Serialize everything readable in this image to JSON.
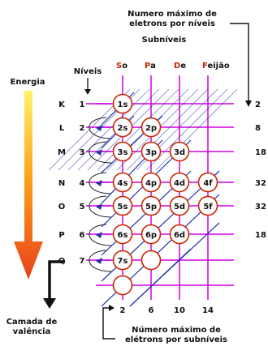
{
  "header": {
    "max_per_level": "Numero máximo de\neletrons por níveis",
    "max_per_level_l1": "Numero máximo de",
    "max_per_level_l2": "eletrons por níveis",
    "subniveis": "Subníveis",
    "levels_title": "Níveis"
  },
  "energy_label": "Energia",
  "mnemonic": {
    "letters": [
      "S",
      "P",
      "D",
      "F"
    ],
    "rests": [
      "o",
      "a",
      "e",
      "eijão"
    ]
  },
  "levels": [
    {
      "letter": "K",
      "number": "1",
      "max": "2"
    },
    {
      "letter": "L",
      "number": "2",
      "max": "8"
    },
    {
      "letter": "M",
      "number": "3",
      "max": "18"
    },
    {
      "letter": "N",
      "number": "4",
      "max": "32"
    },
    {
      "letter": "O",
      "number": "5",
      "max": "32"
    },
    {
      "letter": "P",
      "number": "6",
      "max": "18"
    },
    {
      "letter": "Q",
      "number": "7",
      "max": ""
    }
  ],
  "orbitals": [
    [
      "1s"
    ],
    [
      "2s",
      "2p"
    ],
    [
      "3s",
      "3p",
      "3d"
    ],
    [
      "4s",
      "4p",
      "4d",
      "4f"
    ],
    [
      "5s",
      "5p",
      "5d",
      "5f"
    ],
    [
      "6s",
      "6p",
      "6d"
    ],
    [
      "7s",
      ""
    ],
    [
      ""
    ]
  ],
  "subshell_max": [
    "2",
    "6",
    "10",
    "14"
  ],
  "footer": {
    "sub_max_l1": "Número máximo de",
    "sub_max_l2": "elétrons por subníveis"
  },
  "valence": {
    "l1": "Camada de",
    "l2": "valência"
  },
  "colors": {
    "grid": "#d000e0",
    "diagonal": "#2233aa",
    "circle_stroke": "#cc2200",
    "mnemonic_red": "#cc2200"
  }
}
